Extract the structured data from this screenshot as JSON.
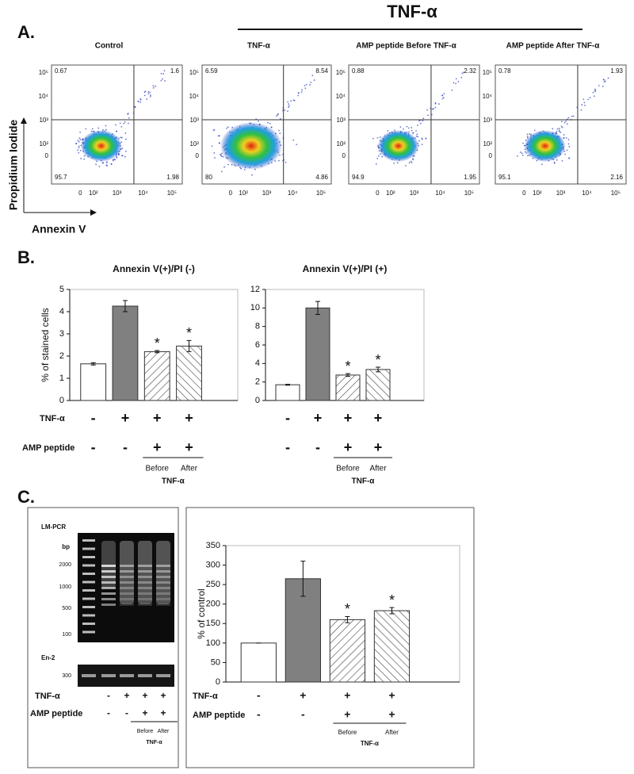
{
  "figure_title": "TNF-α",
  "panel_a": {
    "label": "A.",
    "y_axis_title": "Propidium Iodide",
    "x_axis_title": "Annexin V",
    "axis_ticks": [
      "0",
      "10²",
      "10³",
      "10⁴",
      "10⁵"
    ],
    "plots": [
      {
        "title": "Control",
        "quadrants": {
          "upper_left": 0.67,
          "upper_right": 1.6,
          "lower_left": 95.7,
          "lower_right": 1.98
        }
      },
      {
        "title": "TNF-α",
        "quadrants": {
          "upper_left": 6.59,
          "upper_right": 8.54,
          "lower_left": 80,
          "lower_right": 4.86
        }
      },
      {
        "title": "AMP peptide Before TNF-α",
        "quadrants": {
          "upper_left": 0.88,
          "upper_right": 2.32,
          "lower_left": 94.9,
          "lower_right": 1.95
        }
      },
      {
        "title": "AMP peptide  After TNF-α",
        "quadrants": {
          "upper_left": 0.78,
          "upper_right": 1.93,
          "lower_left": 95.1,
          "lower_right": 2.16
        }
      }
    ]
  },
  "panel_b": {
    "label": "B."
  },
  "chart_data": [
    {
      "type": "bar",
      "title": "Annexin V(+)/PI (-)",
      "y_label": "% of stained cells",
      "values": [
        1.65,
        4.25,
        2.2,
        2.45
      ],
      "errors": [
        0.05,
        0.25,
        0.05,
        0.25
      ],
      "significance": [
        null,
        null,
        "*",
        "*"
      ],
      "bar_styles": [
        "white",
        "gray",
        "hatch-right",
        "hatch-left"
      ],
      "color": "#808080",
      "ylim": [
        0,
        5
      ],
      "yticks": [
        0,
        1,
        2,
        3,
        4,
        5
      ],
      "conditions": {
        "rows": [
          {
            "label": "TNF-α",
            "signs": [
              "-",
              "+",
              "+",
              "+"
            ]
          },
          {
            "label": "AMP peptide",
            "signs": [
              "-",
              "-",
              "+",
              "+"
            ]
          }
        ],
        "sublabels": [
          "Before",
          "After"
        ],
        "group_label": "TNF-α"
      }
    },
    {
      "type": "bar",
      "title": "Annexin V(+)/PI (+)",
      "values": [
        1.7,
        10.0,
        2.75,
        3.35
      ],
      "errors": [
        0.05,
        0.7,
        0.15,
        0.25
      ],
      "significance": [
        null,
        null,
        "*",
        "*"
      ],
      "bar_styles": [
        "white",
        "gray",
        "hatch-right",
        "hatch-left"
      ],
      "color": "#808080",
      "ylim": [
        0,
        12
      ],
      "yticks": [
        0,
        2,
        4,
        6,
        8,
        10,
        12
      ],
      "conditions": {
        "rows": [
          {
            "signs": [
              "-",
              "+",
              "+",
              "+"
            ]
          },
          {
            "signs": [
              "-",
              "-",
              "+",
              "+"
            ]
          }
        ],
        "sublabels": [
          "Before",
          "After"
        ],
        "group_label": "TNF-α"
      }
    },
    {
      "type": "bar",
      "y_label": "% of control",
      "values": [
        100,
        265,
        160,
        183
      ],
      "errors": [
        0,
        45,
        8,
        8
      ],
      "significance": [
        null,
        null,
        "*",
        "*"
      ],
      "bar_styles": [
        "white",
        "gray",
        "hatch-right",
        "hatch-left"
      ],
      "color": "#808080",
      "ylim": [
        0,
        350
      ],
      "yticks": [
        0,
        50,
        100,
        150,
        200,
        250,
        300,
        350
      ],
      "conditions": {
        "rows": [
          {
            "label": "TNF-α",
            "signs": [
              "-",
              "+",
              "+",
              "+"
            ]
          },
          {
            "label": "AMP peptide",
            "signs": [
              "-",
              "-",
              "+",
              "+"
            ]
          }
        ],
        "sublabels": [
          "Before",
          "After"
        ],
        "group_label": "TNF-α"
      }
    }
  ],
  "panel_c": {
    "label": "C.",
    "gel": {
      "title": "LM-PCR",
      "size_unit": "bp",
      "ladder": [
        2000,
        1000,
        500,
        100
      ],
      "control_title": "En-2",
      "control_size": 300,
      "conditions": {
        "rows": [
          {
            "label": "TNF-α",
            "signs": [
              "-",
              "+",
              "+",
              "+"
            ]
          },
          {
            "label": "AMP peptide",
            "signs": [
              "-",
              "-",
              "+",
              "+"
            ]
          }
        ],
        "sublabels": [
          "Before",
          "After"
        ],
        "group_label": "TNF-α"
      }
    }
  }
}
